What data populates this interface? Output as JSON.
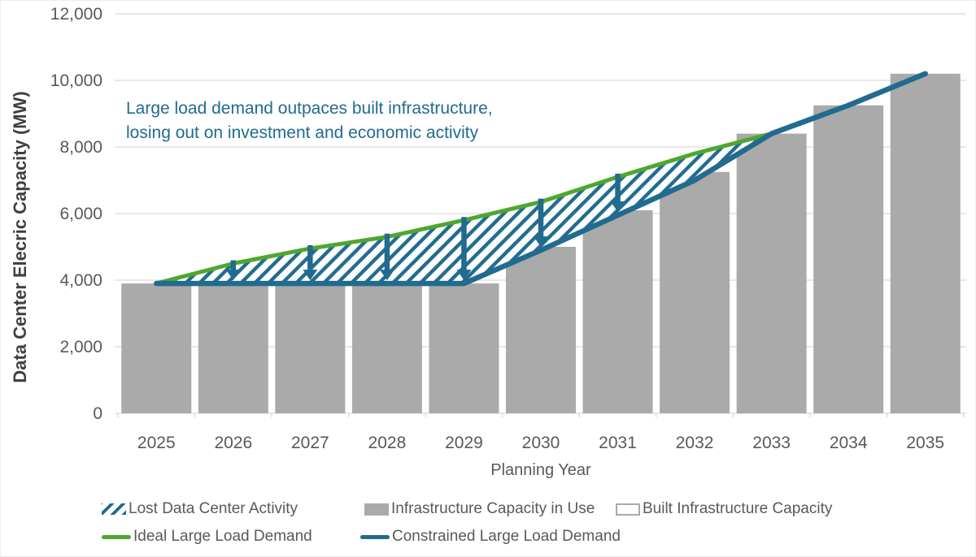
{
  "annotation": {
    "line1": "Large load demand outpaces built infrastructure,",
    "line2": "losing out on investment and economic activity",
    "color": "#216b8f"
  },
  "legend": {
    "items": [
      {
        "label": "Lost Data Center Activity",
        "swatch": "blue-diagonal-hatch"
      },
      {
        "label": "Infrastructure Capacity in Use",
        "swatch": "gray-fill"
      },
      {
        "label": "Built Infrastructure Capacity",
        "swatch": "white-outline"
      },
      {
        "label": "Ideal Large Load Demand",
        "swatch": "green-line"
      },
      {
        "label": "Constrained Large Load Demand",
        "swatch": "blue-line"
      }
    ]
  },
  "colors": {
    "bar_gray": "#aaaaaa",
    "ideal_green": "#4ea72e",
    "constrained_blue": "#216b8f",
    "grid_gray": "#d9d9d9",
    "tick_text": "#595959",
    "axis_title_text": "#3f3f3f"
  },
  "chart_data": {
    "type": "combo",
    "title": "",
    "xlabel": "Planning Year",
    "ylabel": "Data Center Elecric Capacity (MW)",
    "categories": [
      "2025",
      "2026",
      "2027",
      "2028",
      "2029",
      "2030",
      "2031",
      "2032",
      "2033",
      "2034",
      "2035"
    ],
    "x": [
      2025,
      2026,
      2027,
      2028,
      2029,
      2030,
      2031,
      2032,
      2033,
      2034,
      2035
    ],
    "ylim": [
      0,
      12000
    ],
    "y_tick_values": [
      0,
      2000,
      4000,
      6000,
      8000,
      10000,
      12000
    ],
    "y_tick_labels": [
      "0",
      "2,000",
      "4,000",
      "6,000",
      "8,000",
      "10,000",
      "12,000"
    ],
    "grid": "horizontal",
    "legend_position": "bottom",
    "series": [
      {
        "name": "Infrastructure Capacity in Use",
        "type": "bar",
        "color": "#aaaaaa",
        "values": [
          3900,
          3900,
          3900,
          3900,
          3900,
          5000,
          6100,
          7250,
          8400,
          9250,
          10200
        ]
      },
      {
        "name": "Built Infrastructure Capacity",
        "type": "bar-outline",
        "color": "#ffffff",
        "border": "#aaaaaa",
        "values": null,
        "note": "legend entry only; coincides with gray bars so not separately visible"
      },
      {
        "name": "Ideal Large Load Demand",
        "type": "line",
        "color": "#4ea72e",
        "values": [
          3900,
          4500,
          4950,
          5300,
          5800,
          6350,
          7100,
          7800,
          8400,
          9250,
          10200
        ]
      },
      {
        "name": "Constrained Large Load Demand",
        "type": "line",
        "color": "#216b8f",
        "values": [
          3900,
          3900,
          3900,
          3900,
          3900,
          4900,
          5950,
          7000,
          8400,
          9250,
          10200
        ]
      }
    ],
    "lost_region": {
      "name": "Lost Data Center Activity",
      "between": [
        "Ideal Large Load Demand",
        "Constrained Large Load Demand"
      ],
      "year_span": [
        2025,
        2033
      ],
      "style": "blue-diagonal-hatch"
    },
    "arrows": {
      "years": [
        2026,
        2027,
        2028,
        2029,
        2030,
        2031
      ],
      "direction": "down",
      "color": "#216b8f"
    }
  }
}
